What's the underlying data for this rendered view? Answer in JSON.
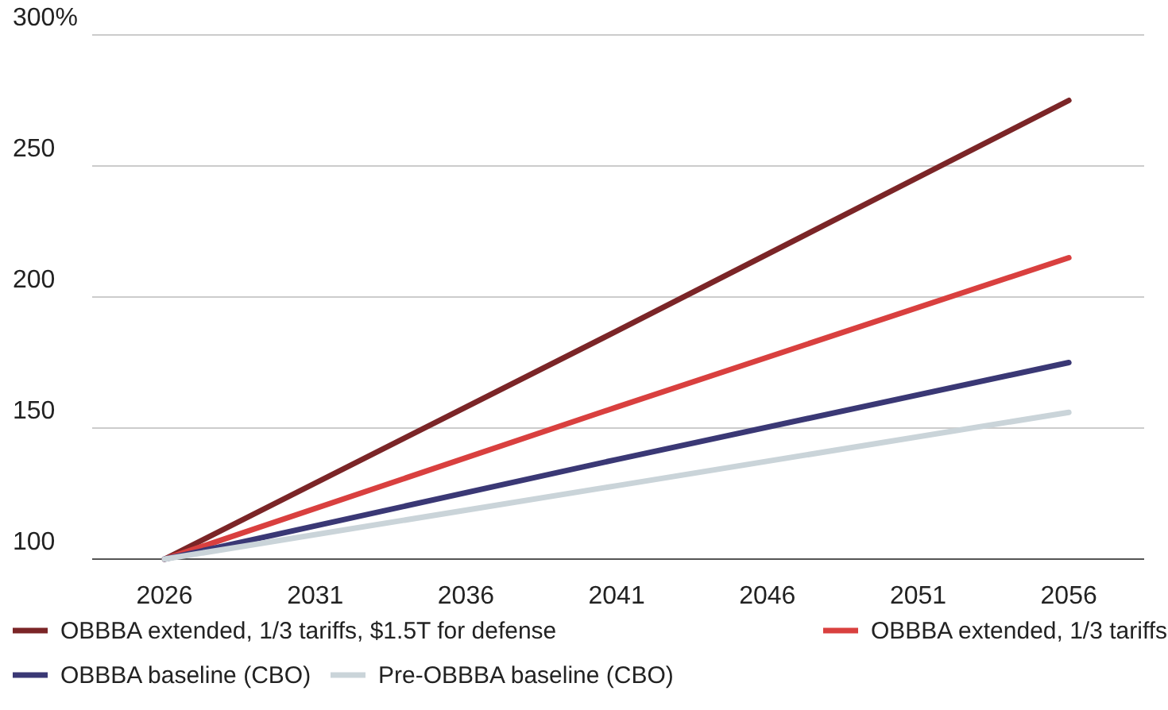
{
  "chart_data": {
    "type": "line",
    "x": [
      2026,
      2041,
      2056
    ],
    "xlim": [
      2023.6,
      2058.5
    ],
    "xticks": [
      2026,
      2031,
      2036,
      2041,
      2046,
      2051,
      2056
    ],
    "ylim": [
      100,
      300
    ],
    "yticks": [
      100,
      150,
      200,
      250,
      {
        "value": 300,
        "label": "300%"
      }
    ],
    "grid": "y",
    "legend": "bottom",
    "line_style": "solid",
    "marker": "none",
    "series": [
      {
        "name": "OBBBA extended, 1/3 tariffs, $1.5T for defense",
        "color": "#7b2527",
        "values": [
          100,
          187,
          275
        ]
      },
      {
        "name": "OBBBA extended, 1/3 tariffs",
        "color": "#d9403f",
        "values": [
          100,
          158,
          215
        ]
      },
      {
        "name": "OBBBA baseline (CBO)",
        "color": "#3a3875",
        "values": [
          100,
          138,
          175
        ]
      },
      {
        "name": "Pre-OBBBA baseline (CBO)",
        "color": "#cad4d9",
        "values": [
          100,
          128,
          156
        ]
      }
    ]
  }
}
